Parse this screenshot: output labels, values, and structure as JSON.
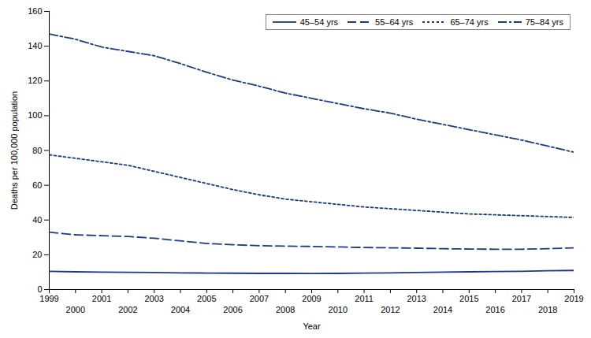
{
  "chart_data": {
    "type": "line",
    "x": [
      1999,
      2000,
      2001,
      2002,
      2003,
      2004,
      2005,
      2006,
      2007,
      2008,
      2009,
      2010,
      2011,
      2012,
      2013,
      2014,
      2015,
      2016,
      2017,
      2018,
      2019
    ],
    "series": [
      {
        "name": "45–54 yrs",
        "color": "#1a3a8a",
        "line_style": "solid",
        "values": [
          10.5,
          10.2,
          10.0,
          9.9,
          9.8,
          9.6,
          9.5,
          9.4,
          9.3,
          9.3,
          9.2,
          9.3,
          9.5,
          9.6,
          9.8,
          10.0,
          10.2,
          10.4,
          10.5,
          10.8,
          11.0
        ]
      },
      {
        "name": "55–64 yrs",
        "color": "#1a3a8a",
        "line_style": "dashed",
        "values": [
          33.0,
          31.5,
          31.0,
          30.5,
          29.5,
          28.0,
          26.5,
          25.8,
          25.2,
          25.0,
          24.8,
          24.5,
          24.2,
          24.0,
          23.8,
          23.5,
          23.3,
          23.2,
          23.2,
          23.5,
          24.0
        ]
      },
      {
        "name": "65–74 yrs",
        "color": "#1a3a8a",
        "line_style": "dotted",
        "values": [
          77.5,
          75.5,
          73.5,
          71.5,
          68.0,
          64.5,
          61.0,
          57.5,
          54.5,
          52.0,
          50.5,
          49.0,
          47.5,
          46.5,
          45.5,
          44.5,
          43.5,
          43.0,
          42.5,
          42.0,
          41.5
        ]
      },
      {
        "name": "75–84 yrs",
        "color": "#1a3a8a",
        "line_style": "dashdot",
        "values": [
          147.0,
          144.0,
          139.5,
          137.0,
          134.5,
          130.0,
          125.0,
          120.5,
          117.0,
          113.0,
          110.0,
          107.0,
          104.0,
          101.5,
          98.0,
          95.0,
          92.0,
          89.0,
          86.0,
          82.5,
          79.0
        ]
      }
    ],
    "xlabel": "Year",
    "ylabel": "Deaths per 100,000 population",
    "xlim": [
      1999,
      2019
    ],
    "xticks": [
      1999,
      2000,
      2001,
      2002,
      2003,
      2004,
      2005,
      2006,
      2007,
      2008,
      2009,
      2010,
      2011,
      2012,
      2013,
      2014,
      2015,
      2016,
      2017,
      2018,
      2019
    ],
    "ylim": [
      0,
      160
    ],
    "yticks": [
      0,
      20,
      40,
      60,
      80,
      100,
      120,
      140,
      160
    ],
    "legend": "upper right",
    "grid": false
  }
}
